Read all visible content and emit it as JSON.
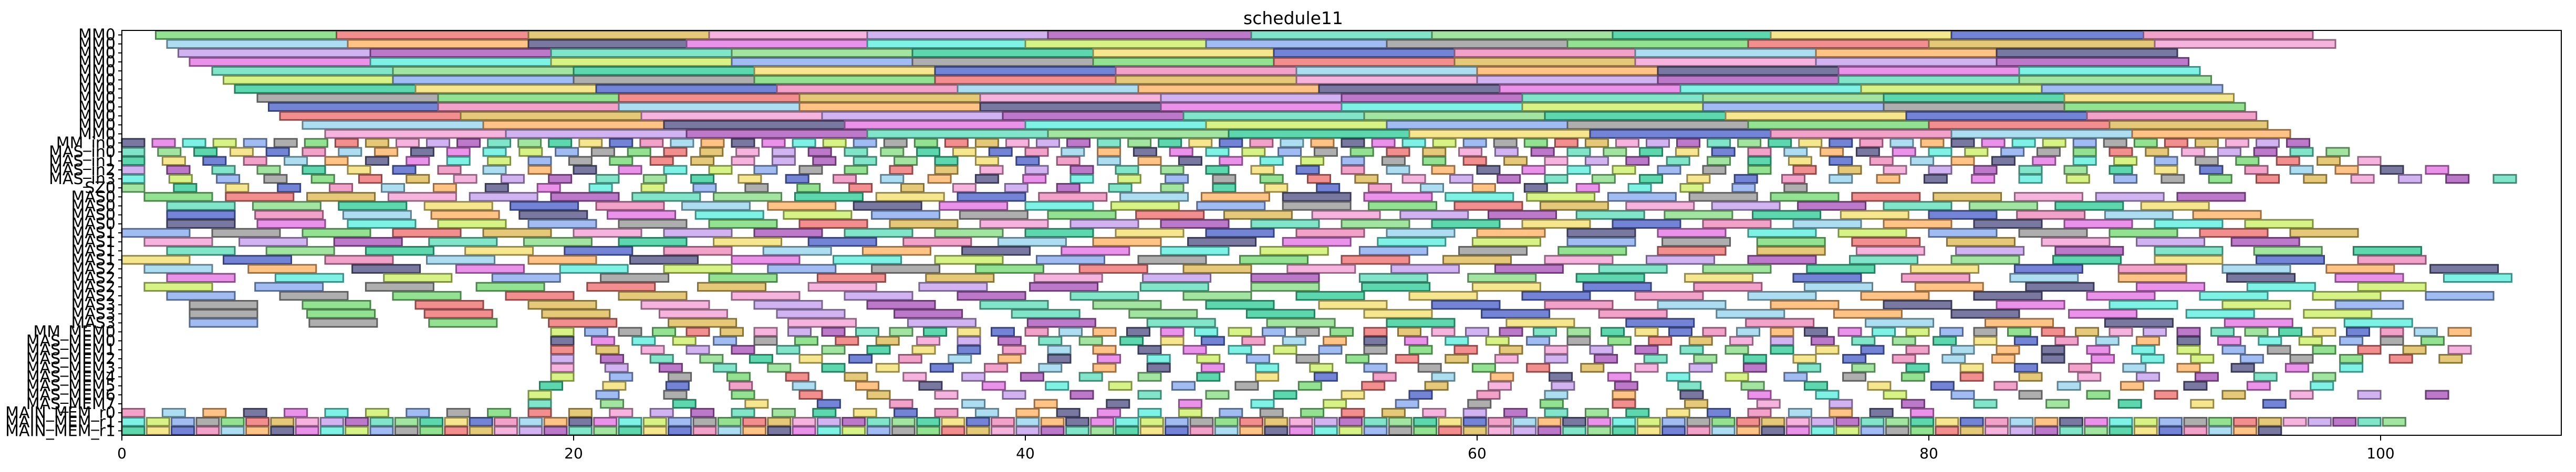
{
  "chart_data": {
    "type": "gantt",
    "title": "schedule11",
    "xlabel": "",
    "ylabel": "",
    "xlim": [
      0,
      108
    ],
    "x_ticks": [
      0,
      20,
      40,
      60,
      80,
      100
    ],
    "grid": false,
    "legend": "none",
    "rows": [
      "MM0",
      "MM0",
      "MM0",
      "MM0",
      "MM0",
      "MM0",
      "MM0",
      "MM0",
      "MM0",
      "MM0",
      "MM0",
      "MM0",
      "MM_in0",
      "MAS_in0",
      "MAS_in1",
      "MAS_in2",
      "MAS_in3",
      "SZ0",
      "MAS0",
      "MAS0",
      "MAS0",
      "MAS0",
      "MAS1",
      "MAS1",
      "MAS1",
      "MAS1",
      "MAS2",
      "MAS2",
      "MAS2",
      "MAS2",
      "MAS3",
      "MAS3",
      "MAS3",
      "MM_MEM0",
      "MAS_MEM0",
      "MAS_MEM1",
      "MAS_MEM2",
      "MAS_MEM3",
      "MAS_MEM4",
      "MAS_MEM5",
      "MAS_MEM6",
      "MAS_MEM7",
      "MAIN_MEM_r0",
      "MAIN_MEM_r1",
      "MAIN_MEM_r1"
    ],
    "palette": [
      "#7fdd7f",
      "#f4a6d7",
      "#6be0c0",
      "#f5e27a",
      "#9fd7ef",
      "#e67ee6",
      "#8fb0f0",
      "#f07a7a",
      "#c9a6f0",
      "#90e090",
      "#5a6fd0",
      "#ffb870",
      "#66f0e0",
      "#a0a0a0",
      "#e0c060",
      "#b060c0",
      "#40d0a0",
      "#f090c0",
      "#606090",
      "#d0f070"
    ],
    "bar_data": [
      {
        "row": 0,
        "start": 1.5,
        "end": 9.5
      },
      {
        "row": 0,
        "start": 9.5,
        "end": 18
      },
      {
        "row": 0,
        "start": 18,
        "end": 26
      },
      {
        "row": 0,
        "start": 26,
        "end": 33
      },
      {
        "row": 0,
        "start": 33,
        "end": 41
      },
      {
        "row": 0,
        "start": 41,
        "end": 50
      },
      {
        "row": 0,
        "start": 50,
        "end": 58
      },
      {
        "row": 0,
        "start": 58,
        "end": 66
      },
      {
        "row": 0,
        "start": 66,
        "end": 73
      },
      {
        "row": 0,
        "start": 73,
        "end": 81
      },
      {
        "row": 0,
        "start": 81,
        "end": 89.5
      },
      {
        "row": 0,
        "start": 89.5,
        "end": 97
      },
      {
        "row": 1,
        "start": 2,
        "end": 10
      },
      {
        "row": 1,
        "start": 10,
        "end": 18
      },
      {
        "row": 1,
        "start": 18,
        "end": 25
      },
      {
        "row": 1,
        "start": 25,
        "end": 33
      },
      {
        "row": 1,
        "start": 33,
        "end": 40
      },
      {
        "row": 1,
        "start": 40,
        "end": 48
      },
      {
        "row": 1,
        "start": 48,
        "end": 56
      },
      {
        "row": 1,
        "start": 56,
        "end": 64
      },
      {
        "row": 1,
        "start": 64,
        "end": 72
      },
      {
        "row": 1,
        "start": 72,
        "end": 80
      },
      {
        "row": 1,
        "start": 80,
        "end": 90
      },
      {
        "row": 1,
        "start": 90,
        "end": 98
      },
      {
        "row": 2,
        "start": 2.5,
        "end": 11
      },
      {
        "row": 2,
        "start": 11,
        "end": 19
      },
      {
        "row": 2,
        "start": 19,
        "end": 27
      },
      {
        "row": 2,
        "start": 27,
        "end": 35
      },
      {
        "row": 2,
        "start": 35,
        "end": 43
      },
      {
        "row": 2,
        "start": 43,
        "end": 51
      },
      {
        "row": 2,
        "start": 51,
        "end": 59
      },
      {
        "row": 2,
        "start": 59,
        "end": 67
      },
      {
        "row": 2,
        "start": 67,
        "end": 75
      },
      {
        "row": 2,
        "start": 75,
        "end": 83
      },
      {
        "row": 2,
        "start": 83,
        "end": 91
      },
      {
        "row": 3,
        "start": 3,
        "end": 11
      },
      {
        "row": 3,
        "start": 11,
        "end": 19
      },
      {
        "row": 3,
        "start": 19,
        "end": 27
      },
      {
        "row": 3,
        "start": 27,
        "end": 35
      },
      {
        "row": 3,
        "start": 35,
        "end": 43
      },
      {
        "row": 3,
        "start": 43,
        "end": 51
      },
      {
        "row": 3,
        "start": 51,
        "end": 59
      },
      {
        "row": 3,
        "start": 59,
        "end": 67
      },
      {
        "row": 3,
        "start": 67,
        "end": 75
      },
      {
        "row": 3,
        "start": 75,
        "end": 83
      },
      {
        "row": 3,
        "start": 83,
        "end": 91.5
      },
      {
        "row": 4,
        "start": 4,
        "end": 12
      },
      {
        "row": 4,
        "start": 12,
        "end": 20
      },
      {
        "row": 4,
        "start": 20,
        "end": 28
      },
      {
        "row": 4,
        "start": 28,
        "end": 36
      },
      {
        "row": 4,
        "start": 36,
        "end": 44
      },
      {
        "row": 4,
        "start": 44,
        "end": 52
      },
      {
        "row": 4,
        "start": 52,
        "end": 60
      },
      {
        "row": 4,
        "start": 60,
        "end": 68
      },
      {
        "row": 4,
        "start": 68,
        "end": 76
      },
      {
        "row": 4,
        "start": 76,
        "end": 84
      },
      {
        "row": 4,
        "start": 84,
        "end": 92
      },
      {
        "row": 5,
        "start": 4.5,
        "end": 12
      },
      {
        "row": 5,
        "start": 12,
        "end": 20
      },
      {
        "row": 5,
        "start": 20,
        "end": 28
      },
      {
        "row": 5,
        "start": 28,
        "end": 36
      },
      {
        "row": 5,
        "start": 36,
        "end": 44
      },
      {
        "row": 5,
        "start": 44,
        "end": 52
      },
      {
        "row": 5,
        "start": 52,
        "end": 60
      },
      {
        "row": 5,
        "start": 60,
        "end": 68
      },
      {
        "row": 5,
        "start": 68,
        "end": 76
      },
      {
        "row": 5,
        "start": 76,
        "end": 84
      },
      {
        "row": 5,
        "start": 84,
        "end": 92.5
      },
      {
        "row": 6,
        "start": 5,
        "end": 13
      },
      {
        "row": 6,
        "start": 13,
        "end": 21
      },
      {
        "row": 6,
        "start": 21,
        "end": 29
      },
      {
        "row": 6,
        "start": 29,
        "end": 37
      },
      {
        "row": 6,
        "start": 37,
        "end": 45
      },
      {
        "row": 6,
        "start": 45,
        "end": 53
      },
      {
        "row": 6,
        "start": 53,
        "end": 61
      },
      {
        "row": 6,
        "start": 61,
        "end": 69
      },
      {
        "row": 6,
        "start": 69,
        "end": 77
      },
      {
        "row": 6,
        "start": 77,
        "end": 85
      },
      {
        "row": 6,
        "start": 85,
        "end": 93
      },
      {
        "row": 7,
        "start": 6,
        "end": 14
      },
      {
        "row": 7,
        "start": 14,
        "end": 22
      },
      {
        "row": 7,
        "start": 22,
        "end": 30
      },
      {
        "row": 7,
        "start": 30,
        "end": 38
      },
      {
        "row": 7,
        "start": 38,
        "end": 46
      },
      {
        "row": 7,
        "start": 46,
        "end": 54
      },
      {
        "row": 7,
        "start": 54,
        "end": 62
      },
      {
        "row": 7,
        "start": 62,
        "end": 70
      },
      {
        "row": 7,
        "start": 70,
        "end": 78
      },
      {
        "row": 7,
        "start": 78,
        "end": 86
      },
      {
        "row": 7,
        "start": 86,
        "end": 93.5
      },
      {
        "row": 8,
        "start": 6.5,
        "end": 14
      },
      {
        "row": 8,
        "start": 14,
        "end": 22
      },
      {
        "row": 8,
        "start": 22,
        "end": 30
      },
      {
        "row": 8,
        "start": 30,
        "end": 38
      },
      {
        "row": 8,
        "start": 38,
        "end": 46
      },
      {
        "row": 8,
        "start": 46,
        "end": 54
      },
      {
        "row": 8,
        "start": 54,
        "end": 62
      },
      {
        "row": 8,
        "start": 62,
        "end": 70
      },
      {
        "row": 8,
        "start": 70,
        "end": 78
      },
      {
        "row": 8,
        "start": 78,
        "end": 86
      },
      {
        "row": 8,
        "start": 86,
        "end": 94
      },
      {
        "row": 9,
        "start": 7,
        "end": 15
      },
      {
        "row": 9,
        "start": 15,
        "end": 23
      },
      {
        "row": 9,
        "start": 23,
        "end": 31
      },
      {
        "row": 9,
        "start": 31,
        "end": 39
      },
      {
        "row": 9,
        "start": 39,
        "end": 47
      },
      {
        "row": 9,
        "start": 47,
        "end": 55
      },
      {
        "row": 9,
        "start": 55,
        "end": 63
      },
      {
        "row": 9,
        "start": 63,
        "end": 71
      },
      {
        "row": 9,
        "start": 71,
        "end": 79
      },
      {
        "row": 9,
        "start": 79,
        "end": 87
      },
      {
        "row": 9,
        "start": 87,
        "end": 94.5
      },
      {
        "row": 10,
        "start": 8,
        "end": 16
      },
      {
        "row": 10,
        "start": 16,
        "end": 24
      },
      {
        "row": 10,
        "start": 24,
        "end": 32
      },
      {
        "row": 10,
        "start": 32,
        "end": 40
      },
      {
        "row": 10,
        "start": 40,
        "end": 48
      },
      {
        "row": 10,
        "start": 48,
        "end": 56
      },
      {
        "row": 10,
        "start": 56,
        "end": 64
      },
      {
        "row": 10,
        "start": 64,
        "end": 72
      },
      {
        "row": 10,
        "start": 72,
        "end": 80
      },
      {
        "row": 10,
        "start": 80,
        "end": 88
      },
      {
        "row": 10,
        "start": 88,
        "end": 95
      },
      {
        "row": 11,
        "start": 9,
        "end": 17
      },
      {
        "row": 11,
        "start": 17,
        "end": 25
      },
      {
        "row": 11,
        "start": 25,
        "end": 33
      },
      {
        "row": 11,
        "start": 33,
        "end": 41
      },
      {
        "row": 11,
        "start": 41,
        "end": 49
      },
      {
        "row": 11,
        "start": 49,
        "end": 57
      },
      {
        "row": 11,
        "start": 57,
        "end": 65
      },
      {
        "row": 11,
        "start": 65,
        "end": 73
      },
      {
        "row": 11,
        "start": 73,
        "end": 81
      },
      {
        "row": 11,
        "start": 81,
        "end": 89
      },
      {
        "row": 11,
        "start": 89,
        "end": 96
      }
    ],
    "dense_rows": [
      {
        "row": 12,
        "start": 0,
        "end": 97,
        "seg": 1.0,
        "gap": 0.35
      },
      {
        "row": 13,
        "start": 0,
        "end": 100,
        "seg": 1.0,
        "gap": 0.6
      },
      {
        "row": 14,
        "start": 0,
        "end": 100,
        "seg": 1.0,
        "gap": 0.8
      },
      {
        "row": 15,
        "start": 0,
        "end": 104,
        "seg": 1.0,
        "gap": 1.0
      },
      {
        "row": 16,
        "start": 0,
        "end": 106,
        "seg": 1.0,
        "gap": 1.1
      },
      {
        "row": 17,
        "start": 0,
        "end": 75,
        "seg": 1.0,
        "gap": 1.3
      },
      {
        "row": 18,
        "start": 1,
        "end": 96,
        "seg": 3.0,
        "gap": 0.6
      },
      {
        "row": 19,
        "start": 2,
        "end": 96,
        "seg": 3.0,
        "gap": 0.8
      },
      {
        "row": 20,
        "start": 2,
        "end": 97,
        "seg": 3.0,
        "gap": 0.9
      },
      {
        "row": 21,
        "start": 2,
        "end": 98,
        "seg": 3.0,
        "gap": 1.0
      },
      {
        "row": 22,
        "start": 0,
        "end": 100,
        "seg": 3.0,
        "gap": 1.0
      },
      {
        "row": 23,
        "start": 1,
        "end": 100,
        "seg": 3.0,
        "gap": 1.2
      },
      {
        "row": 24,
        "start": 2,
        "end": 102,
        "seg": 3.0,
        "gap": 1.4
      },
      {
        "row": 25,
        "start": 0,
        "end": 103,
        "seg": 3.0,
        "gap": 1.5
      },
      {
        "row": 26,
        "start": 1,
        "end": 106,
        "seg": 3.0,
        "gap": 1.6
      },
      {
        "row": 27,
        "start": 2,
        "end": 108,
        "seg": 3.0,
        "gap": 1.8
      },
      {
        "row": 28,
        "start": 1,
        "end": 106,
        "seg": 3.0,
        "gap": 1.9
      },
      {
        "row": 29,
        "start": 2,
        "end": 106,
        "seg": 3.0,
        "gap": 2.0
      },
      {
        "row": 30,
        "start": 3,
        "end": 102,
        "seg": 3.0,
        "gap": 2.0
      },
      {
        "row": 31,
        "start": 3,
        "end": 104,
        "seg": 3.0,
        "gap": 2.2
      },
      {
        "row": 32,
        "start": 3,
        "end": 106,
        "seg": 3.0,
        "gap": 2.3
      },
      {
        "row": 33,
        "start": 19,
        "end": 105,
        "seg": 1.0,
        "gap": 0.5
      },
      {
        "row": 34,
        "start": 19,
        "end": 103,
        "seg": 1.0,
        "gap": 0.8
      },
      {
        "row": 35,
        "start": 19,
        "end": 104,
        "seg": 1.0,
        "gap": 1.0
      },
      {
        "row": 36,
        "start": 19,
        "end": 105,
        "seg": 1.0,
        "gap": 1.2
      },
      {
        "row": 37,
        "start": 19,
        "end": 100,
        "seg": 1.0,
        "gap": 1.4
      },
      {
        "row": 38,
        "start": 19,
        "end": 99,
        "seg": 1.0,
        "gap": 1.6
      },
      {
        "row": 39,
        "start": 18.5,
        "end": 98,
        "seg": 1.0,
        "gap": 1.8
      },
      {
        "row": 40,
        "start": 18,
        "end": 104,
        "seg": 1.0,
        "gap": 2.0
      },
      {
        "row": 41,
        "start": 18,
        "end": 97,
        "seg": 1.0,
        "gap": 2.2
      },
      {
        "row": 42,
        "start": 0,
        "end": 81,
        "seg": 1.0,
        "gap": 0.8
      },
      {
        "row": 43,
        "start": 0,
        "end": 102,
        "seg": 1.0,
        "gap": 0.1
      },
      {
        "row": 44,
        "start": 0,
        "end": 96,
        "seg": 1.0,
        "gap": 0.1
      }
    ]
  }
}
